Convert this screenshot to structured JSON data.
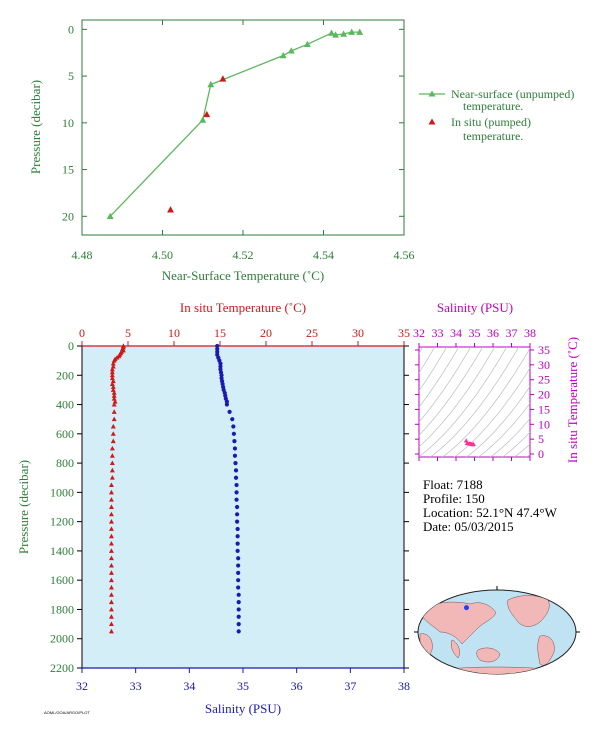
{
  "chart_data": [
    {
      "type": "line",
      "xlabel": "Near-Surface Temperature (˚C)",
      "ylabel": "Pressure (decibar)",
      "xlim": [
        4.48,
        4.56
      ],
      "ylim": [
        22,
        -1
      ],
      "xticks": [
        "4.48",
        "4.50",
        "4.52",
        "4.54",
        "4.56"
      ],
      "yticks": [
        "0",
        "5",
        "10",
        "15",
        "20"
      ],
      "series": [
        {
          "name": "Near-surface (unpumped) temperature.",
          "color": "#5cb85c",
          "marker": "triangle",
          "points": [
            [
              4.549,
              0.3
            ],
            [
              4.547,
              0.3
            ],
            [
              4.545,
              0.5
            ],
            [
              4.543,
              0.6
            ],
            [
              4.542,
              0.4
            ],
            [
              4.536,
              1.6
            ],
            [
              4.532,
              2.3
            ],
            [
              4.53,
              2.8
            ],
            [
              4.512,
              5.9
            ],
            [
              4.51,
              9.7
            ],
            [
              4.487,
              20.0
            ]
          ]
        },
        {
          "name": "In situ (pumped) temperature.",
          "color": "#d01818",
          "marker": "triangle",
          "points": [
            [
              4.515,
              5.3
            ],
            [
              4.511,
              9.1
            ],
            [
              4.502,
              19.3
            ]
          ]
        }
      ],
      "legend": [
        "Near-surface (unpumped)",
        "temperature.",
        "In situ (pumped)",
        "temperature."
      ]
    },
    {
      "type": "scatter",
      "top_xlabel": "In situ Temperature (˚C)",
      "bottom_xlabel": "Salinity (PSU)",
      "ylabel": "Pressure (decibar)",
      "temp_xlim": [
        0,
        35
      ],
      "sal_xlim": [
        32,
        38
      ],
      "ylim": [
        2200,
        0
      ],
      "temp_ticks": [
        "0",
        "5",
        "10",
        "15",
        "20",
        "25",
        "30",
        "35"
      ],
      "sal_ticks": [
        "32",
        "33",
        "34",
        "35",
        "36",
        "37",
        "38"
      ],
      "pres_ticks": [
        "0",
        "200",
        "400",
        "600",
        "800",
        "1000",
        "1200",
        "1400",
        "1600",
        "1800",
        "2000",
        "2200"
      ],
      "temperature": {
        "color": "#d01818",
        "marker": "triangle",
        "points": [
          [
            4.5,
            0
          ],
          [
            4.5,
            10
          ],
          [
            4.4,
            20
          ],
          [
            4.5,
            30
          ],
          [
            4.3,
            40
          ],
          [
            4.2,
            50
          ],
          [
            4.1,
            60
          ],
          [
            4.0,
            70
          ],
          [
            3.8,
            80
          ],
          [
            3.6,
            90
          ],
          [
            3.5,
            100
          ],
          [
            3.4,
            120
          ],
          [
            3.4,
            140
          ],
          [
            3.3,
            160
          ],
          [
            3.3,
            180
          ],
          [
            3.3,
            200
          ],
          [
            3.3,
            220
          ],
          [
            3.4,
            240
          ],
          [
            3.3,
            260
          ],
          [
            3.4,
            280
          ],
          [
            3.4,
            300
          ],
          [
            3.5,
            320
          ],
          [
            3.5,
            340
          ],
          [
            3.5,
            360
          ],
          [
            3.6,
            380
          ],
          [
            3.5,
            400
          ],
          [
            3.5,
            450
          ],
          [
            3.5,
            500
          ],
          [
            3.4,
            550
          ],
          [
            3.4,
            600
          ],
          [
            3.4,
            650
          ],
          [
            3.3,
            700
          ],
          [
            3.3,
            750
          ],
          [
            3.3,
            800
          ],
          [
            3.3,
            850
          ],
          [
            3.3,
            900
          ],
          [
            3.2,
            950
          ],
          [
            3.2,
            1000
          ],
          [
            3.2,
            1050
          ],
          [
            3.2,
            1100
          ],
          [
            3.2,
            1150
          ],
          [
            3.2,
            1200
          ],
          [
            3.2,
            1250
          ],
          [
            3.2,
            1300
          ],
          [
            3.2,
            1350
          ],
          [
            3.2,
            1400
          ],
          [
            3.2,
            1450
          ],
          [
            3.2,
            1500
          ],
          [
            3.2,
            1550
          ],
          [
            3.2,
            1600
          ],
          [
            3.2,
            1650
          ],
          [
            3.2,
            1700
          ],
          [
            3.2,
            1750
          ],
          [
            3.2,
            1800
          ],
          [
            3.2,
            1850
          ],
          [
            3.2,
            1900
          ],
          [
            3.2,
            1950
          ]
        ]
      },
      "salinity": {
        "color": "#1a1ab0",
        "marker": "circle",
        "points": [
          [
            34.52,
            0
          ],
          [
            34.52,
            20
          ],
          [
            34.52,
            40
          ],
          [
            34.52,
            60
          ],
          [
            34.54,
            80
          ],
          [
            34.56,
            100
          ],
          [
            34.58,
            120
          ],
          [
            34.58,
            140
          ],
          [
            34.58,
            160
          ],
          [
            34.59,
            180
          ],
          [
            34.6,
            200
          ],
          [
            34.6,
            220
          ],
          [
            34.61,
            240
          ],
          [
            34.62,
            260
          ],
          [
            34.63,
            280
          ],
          [
            34.64,
            300
          ],
          [
            34.66,
            320
          ],
          [
            34.67,
            340
          ],
          [
            34.68,
            360
          ],
          [
            34.7,
            380
          ],
          [
            34.7,
            400
          ],
          [
            34.75,
            450
          ],
          [
            34.8,
            500
          ],
          [
            34.82,
            550
          ],
          [
            34.83,
            600
          ],
          [
            34.84,
            650
          ],
          [
            34.85,
            700
          ],
          [
            34.85,
            750
          ],
          [
            34.86,
            800
          ],
          [
            34.87,
            850
          ],
          [
            34.87,
            900
          ],
          [
            34.88,
            950
          ],
          [
            34.88,
            1000
          ],
          [
            34.88,
            1050
          ],
          [
            34.89,
            1100
          ],
          [
            34.89,
            1150
          ],
          [
            34.89,
            1200
          ],
          [
            34.9,
            1250
          ],
          [
            34.9,
            1300
          ],
          [
            34.9,
            1350
          ],
          [
            34.9,
            1400
          ],
          [
            34.91,
            1450
          ],
          [
            34.91,
            1500
          ],
          [
            34.91,
            1550
          ],
          [
            34.91,
            1600
          ],
          [
            34.91,
            1650
          ],
          [
            34.92,
            1700
          ],
          [
            34.92,
            1750
          ],
          [
            34.92,
            1800
          ],
          [
            34.92,
            1850
          ],
          [
            34.92,
            1900
          ],
          [
            34.92,
            1950
          ]
        ]
      }
    },
    {
      "type": "scatter",
      "xlabel": "Salinity (PSU)",
      "ylabel": "In situ Temperature (˚C)",
      "xlim": [
        32,
        38
      ],
      "ylim": [
        -1,
        36
      ],
      "xticks": [
        "32",
        "33",
        "34",
        "35",
        "36",
        "37",
        "38"
      ],
      "yticks": [
        "0",
        "5",
        "10",
        "15",
        "20",
        "25",
        "30",
        "35"
      ],
      "color": "#ff3090",
      "points": [
        [
          34.55,
          4.5
        ],
        [
          34.6,
          3.6
        ],
        [
          34.7,
          3.5
        ],
        [
          34.8,
          3.4
        ],
        [
          34.85,
          3.3
        ],
        [
          34.9,
          3.2
        ],
        [
          34.95,
          3.3
        ],
        [
          34.75,
          3.5
        ]
      ]
    }
  ],
  "info": {
    "float": "Float:  7188",
    "profile": "Profile:  150",
    "location": "Location:  52.1°N  47.4°W",
    "date": "Date:  05/03/2015"
  },
  "map": {
    "marker_lat": 52.1,
    "marker_lon": -47.4,
    "marker_color": "#2040ff"
  },
  "footer_code": "AOML/GOA/ARGO/PLOT"
}
